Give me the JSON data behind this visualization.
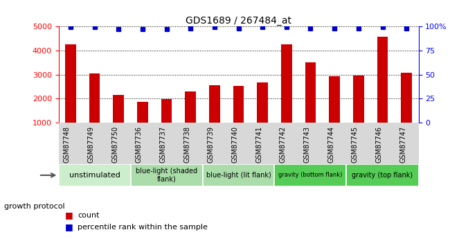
{
  "title": "GDS1689 / 267484_at",
  "samples": [
    "GSM87748",
    "GSM87749",
    "GSM87750",
    "GSM87736",
    "GSM87737",
    "GSM87738",
    "GSM87739",
    "GSM87740",
    "GSM87741",
    "GSM87742",
    "GSM87743",
    "GSM87744",
    "GSM87745",
    "GSM87746",
    "GSM87747"
  ],
  "counts": [
    4250,
    3050,
    2150,
    1870,
    1980,
    2300,
    2560,
    2540,
    2660,
    4250,
    3500,
    2940,
    2950,
    4560,
    3070
  ],
  "percentiles": [
    99,
    99,
    97,
    97,
    97,
    98,
    99,
    98,
    99,
    99,
    98,
    98,
    98,
    99,
    98
  ],
  "bar_color": "#cc0000",
  "dot_color": "#0000cc",
  "ylim_left": [
    1000,
    5000
  ],
  "ylim_right": [
    0,
    100
  ],
  "yticks_left": [
    1000,
    2000,
    3000,
    4000,
    5000
  ],
  "yticks_right": [
    0,
    25,
    50,
    75,
    100
  ],
  "ytick_labels_right": [
    "0",
    "25",
    "50",
    "75",
    "100%"
  ],
  "groups": [
    {
      "label": "unstimulated",
      "indices": [
        0,
        1,
        2
      ],
      "color": "#cceecc",
      "fontsize": 8
    },
    {
      "label": "blue-light (shaded\nflank)",
      "indices": [
        3,
        4,
        5
      ],
      "color": "#aaddaa",
      "fontsize": 7
    },
    {
      "label": "blue-light (lit flank)",
      "indices": [
        6,
        7,
        8
      ],
      "color": "#aaddaa",
      "fontsize": 7
    },
    {
      "label": "gravity (bottom flank)",
      "indices": [
        9,
        10,
        11
      ],
      "color": "#55cc55",
      "fontsize": 6
    },
    {
      "label": "gravity (top flank)",
      "indices": [
        12,
        13,
        14
      ],
      "color": "#55cc55",
      "fontsize": 7
    }
  ],
  "xlabel_left": "growth protocol",
  "legend_count_label": "count",
  "legend_pct_label": "percentile rank within the sample",
  "plot_bg": "#ffffff",
  "xtick_bg": "#d8d8d8",
  "grid_color": "#000000"
}
